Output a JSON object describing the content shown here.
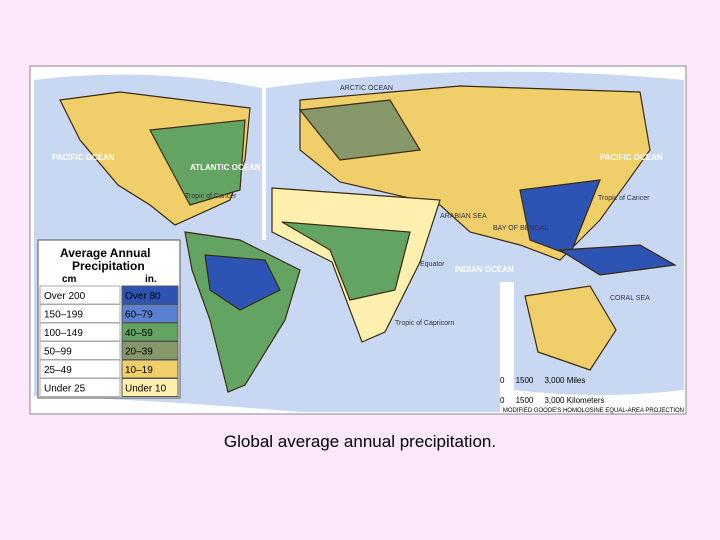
{
  "map": {
    "labels": {
      "arctic": "ARCTIC OCEAN",
      "pacific_w": "PACIFIC OCEAN",
      "atlantic": "ATLANTIC OCEAN",
      "tropic_cancer_w": "Tropic of Cancer",
      "pacific_e": "PACIFIC OCEAN",
      "tropic_cancer_e": "Tropic of Cancer",
      "arabian": "ARABIAN SEA",
      "bengal": "BAY OF BENGAL",
      "equator": "Equator",
      "indian": "INDIAN OCEAN",
      "capricorn": "Tropic of Capricorn",
      "coral": "CORAL SEA"
    },
    "legend": {
      "title": "Average Annual Precipitation",
      "unit_cm": "cm",
      "unit_in": "in.",
      "rows": [
        {
          "cm": "Over 200",
          "in": "Over 80",
          "color": "#2d54b4"
        },
        {
          "cm": "150–199",
          "in": "60–79",
          "color": "#5b80d2"
        },
        {
          "cm": "100–149",
          "in": "40–59",
          "color": "#63a463"
        },
        {
          "cm": "50–99",
          "in": "20–39",
          "color": "#86986a"
        },
        {
          "cm": "25–49",
          "in": "10–19",
          "color": "#f0cf6a"
        },
        {
          "cm": "Under 25",
          "in": "Under 10",
          "color": "#fff0b0"
        }
      ]
    },
    "scale_miles": "0     1500     3,000 Miles",
    "scale_km": "0     1500     3,000 Kilometers",
    "projection": "MODIFIED GOODE'S HOMOLOSINE EQUAL-AREA PROJECTION"
  },
  "caption": "Global average annual precipitation."
}
